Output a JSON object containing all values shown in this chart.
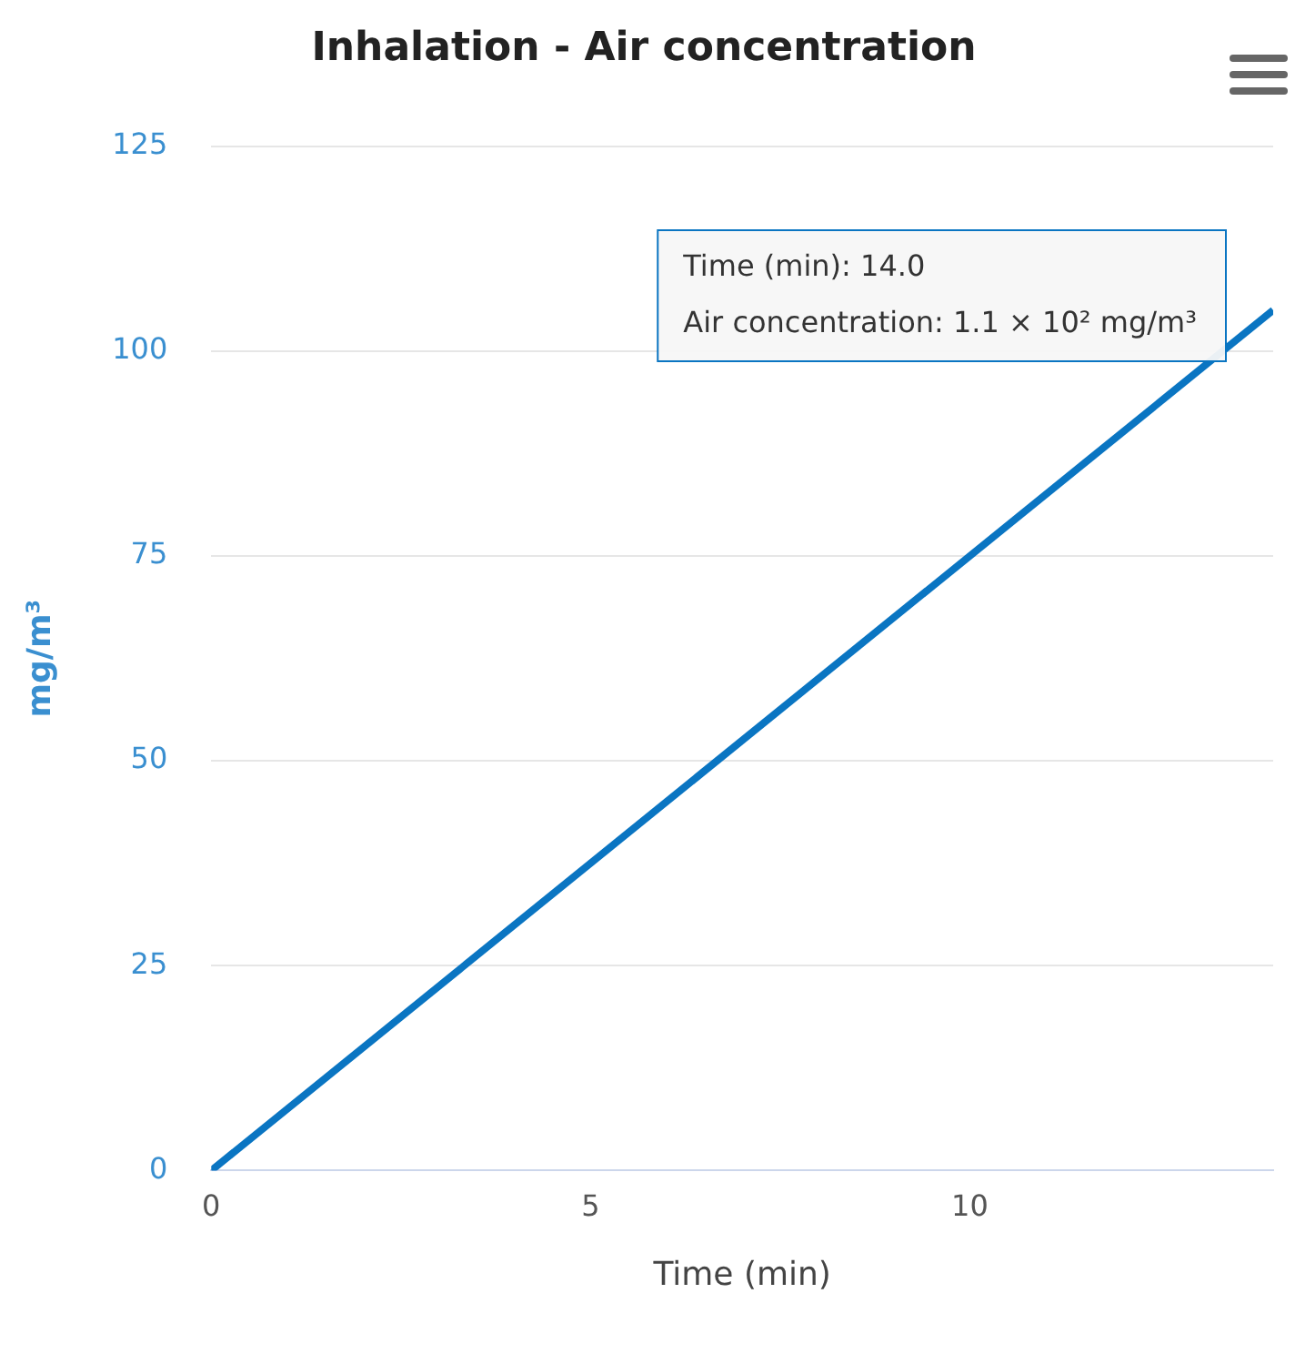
{
  "chart_data": {
    "type": "line",
    "title": "Inhalation - Air concentration",
    "xlabel": "Time (min)",
    "ylabel": "mg/m³",
    "x": [
      0,
      14
    ],
    "series": [
      {
        "color": "#0a75c2",
        "values": [
          0,
          105
        ]
      }
    ],
    "xlim": [
      0,
      14
    ],
    "xticks": [
      0,
      5,
      10
    ],
    "ylim": [
      0,
      125
    ],
    "yticks": [
      0,
      25,
      50,
      75,
      100,
      125
    ],
    "grid": "y",
    "legend": false,
    "marker": "none",
    "line_style": "solid",
    "annotations": [
      "Time (min): 14.0",
      "Air concentration: 1.1 × 10² mg/m³"
    ]
  }
}
